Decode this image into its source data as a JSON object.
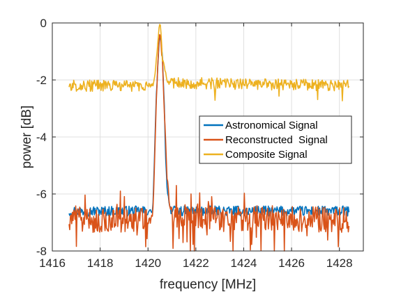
{
  "chart_data": {
    "type": "line",
    "title": "",
    "xlabel": "frequency [MHz]",
    "ylabel": "power [dB]",
    "xlim": [
      1416,
      1429
    ],
    "ylim": [
      -8,
      0
    ],
    "xticks": [
      1416,
      1418,
      1420,
      1422,
      1424,
      1426,
      1428
    ],
    "yticks": [
      -8,
      -6,
      -4,
      -2,
      0
    ],
    "grid": true,
    "legend_position": "right-middle",
    "x_range": [
      1416.7,
      1428.4
    ],
    "peak_x": 1420.5,
    "series": [
      {
        "name": "Astronomical Signal",
        "color": "#0072BD",
        "baseline": -6.6,
        "noise": 0.18,
        "x": [
          1416.7,
          1420.2,
          1420.35,
          1420.45,
          1420.5,
          1420.55,
          1420.6,
          1420.7,
          1420.72,
          1420.8,
          1420.9,
          1421.0,
          1428.4
        ],
        "y": [
          -6.6,
          -6.6,
          -2.5,
          -0.9,
          -0.4,
          -0.7,
          -1.2,
          -3.2,
          -4.5,
          -5.8,
          -6.4,
          -6.6,
          -6.6
        ]
      },
      {
        "name": "Reconstructed  Signal",
        "color": "#D95319",
        "baseline": -6.9,
        "noise": 0.45,
        "x": [
          1416.7,
          1420.2,
          1420.35,
          1420.45,
          1420.5,
          1420.55,
          1420.6,
          1420.7,
          1420.8,
          1420.9,
          1421.0,
          1428.4
        ],
        "y": [
          -6.9,
          -6.9,
          -2.6,
          -0.7,
          -0.4,
          -0.8,
          -1.3,
          -3.5,
          -5.4,
          -6.3,
          -6.8,
          -6.9
        ]
      },
      {
        "name": "Composite Signal",
        "color": "#EDB120",
        "baseline": -2.2,
        "noise": 0.2,
        "x": [
          1416.7,
          1420.2,
          1420.3,
          1420.4,
          1420.45,
          1420.5,
          1420.55,
          1420.6,
          1420.7,
          1420.8,
          1428.4
        ],
        "y": [
          -2.2,
          -2.2,
          -1.8,
          -0.8,
          -0.3,
          0.0,
          -0.4,
          -1.3,
          -1.6,
          -2.1,
          -2.2
        ]
      }
    ]
  }
}
